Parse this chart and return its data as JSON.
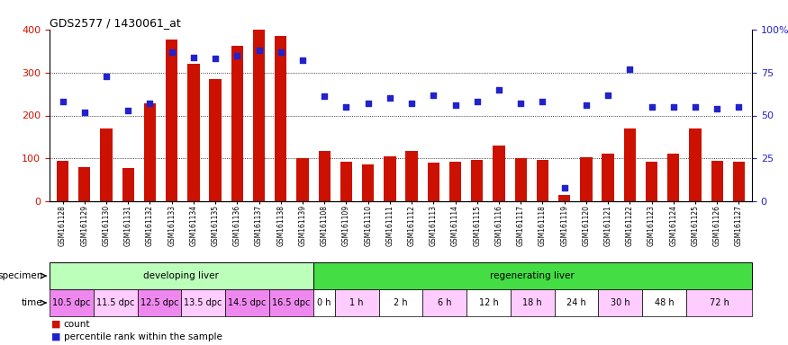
{
  "title": "GDS2577 / 1430061_at",
  "bar_color": "#cc1100",
  "dot_color": "#2222cc",
  "samples": [
    "GSM161128",
    "GSM161129",
    "GSM161130",
    "GSM161131",
    "GSM161132",
    "GSM161133",
    "GSM161134",
    "GSM161135",
    "GSM161136",
    "GSM161137",
    "GSM161138",
    "GSM161139",
    "GSM161108",
    "GSM161109",
    "GSM161110",
    "GSM161111",
    "GSM161112",
    "GSM161113",
    "GSM161114",
    "GSM161115",
    "GSM161116",
    "GSM161117",
    "GSM161118",
    "GSM161119",
    "GSM161120",
    "GSM161121",
    "GSM161122",
    "GSM161123",
    "GSM161124",
    "GSM161125",
    "GSM161126",
    "GSM161127"
  ],
  "counts": [
    95,
    80,
    170,
    78,
    228,
    378,
    320,
    285,
    362,
    400,
    385,
    100,
    118,
    93,
    85,
    105,
    118,
    90,
    93,
    97,
    130,
    100,
    97,
    14,
    103,
    110,
    170,
    93,
    110,
    170,
    95,
    93
  ],
  "percentile": [
    58,
    52,
    73,
    53,
    57,
    87,
    84,
    83,
    85,
    88,
    87,
    82,
    61,
    55,
    57,
    60,
    57,
    62,
    56,
    58,
    65,
    57,
    58,
    8,
    56,
    62,
    77,
    55,
    55,
    55,
    54,
    55
  ],
  "left_ylim": [
    0,
    400
  ],
  "right_ylim": [
    0,
    100
  ],
  "left_yticks": [
    0,
    100,
    200,
    300,
    400
  ],
  "right_yticks": [
    0,
    25,
    50,
    75,
    100
  ],
  "right_yticklabels": [
    "0",
    "25",
    "50",
    "75",
    "100%"
  ],
  "specimen_groups": [
    {
      "label": "developing liver",
      "start": 0,
      "end": 12,
      "color": "#bbffbb"
    },
    {
      "label": "regenerating liver",
      "start": 12,
      "end": 32,
      "color": "#44dd44"
    }
  ],
  "time_groups": [
    {
      "label": "10.5 dpc",
      "start": 0,
      "end": 2,
      "color": "#ee88ee"
    },
    {
      "label": "11.5 dpc",
      "start": 2,
      "end": 4,
      "color": "#ffccff"
    },
    {
      "label": "12.5 dpc",
      "start": 4,
      "end": 6,
      "color": "#ee88ee"
    },
    {
      "label": "13.5 dpc",
      "start": 6,
      "end": 8,
      "color": "#ffccff"
    },
    {
      "label": "14.5 dpc",
      "start": 8,
      "end": 10,
      "color": "#ee88ee"
    },
    {
      "label": "16.5 dpc",
      "start": 10,
      "end": 12,
      "color": "#ee88ee"
    },
    {
      "label": "0 h",
      "start": 12,
      "end": 13,
      "color": "#ffffff"
    },
    {
      "label": "1 h",
      "start": 13,
      "end": 15,
      "color": "#ffccff"
    },
    {
      "label": "2 h",
      "start": 15,
      "end": 17,
      "color": "#ffffff"
    },
    {
      "label": "6 h",
      "start": 17,
      "end": 19,
      "color": "#ffccff"
    },
    {
      "label": "12 h",
      "start": 19,
      "end": 21,
      "color": "#ffffff"
    },
    {
      "label": "18 h",
      "start": 21,
      "end": 23,
      "color": "#ffccff"
    },
    {
      "label": "24 h",
      "start": 23,
      "end": 25,
      "color": "#ffffff"
    },
    {
      "label": "30 h",
      "start": 25,
      "end": 27,
      "color": "#ffccff"
    },
    {
      "label": "48 h",
      "start": 27,
      "end": 29,
      "color": "#ffffff"
    },
    {
      "label": "72 h",
      "start": 29,
      "end": 32,
      "color": "#ffccff"
    }
  ],
  "left_tick_color": "#cc1100",
  "right_tick_color": "#2222cc",
  "legend_count": "count",
  "legend_pct": "percentile rank within the sample",
  "grid_dotted_vals": [
    100,
    200,
    300
  ],
  "title_fontsize": 9,
  "xticklabel_fontsize": 5.5,
  "row_fontsize": 7.5,
  "time_fontsize": 7.0
}
